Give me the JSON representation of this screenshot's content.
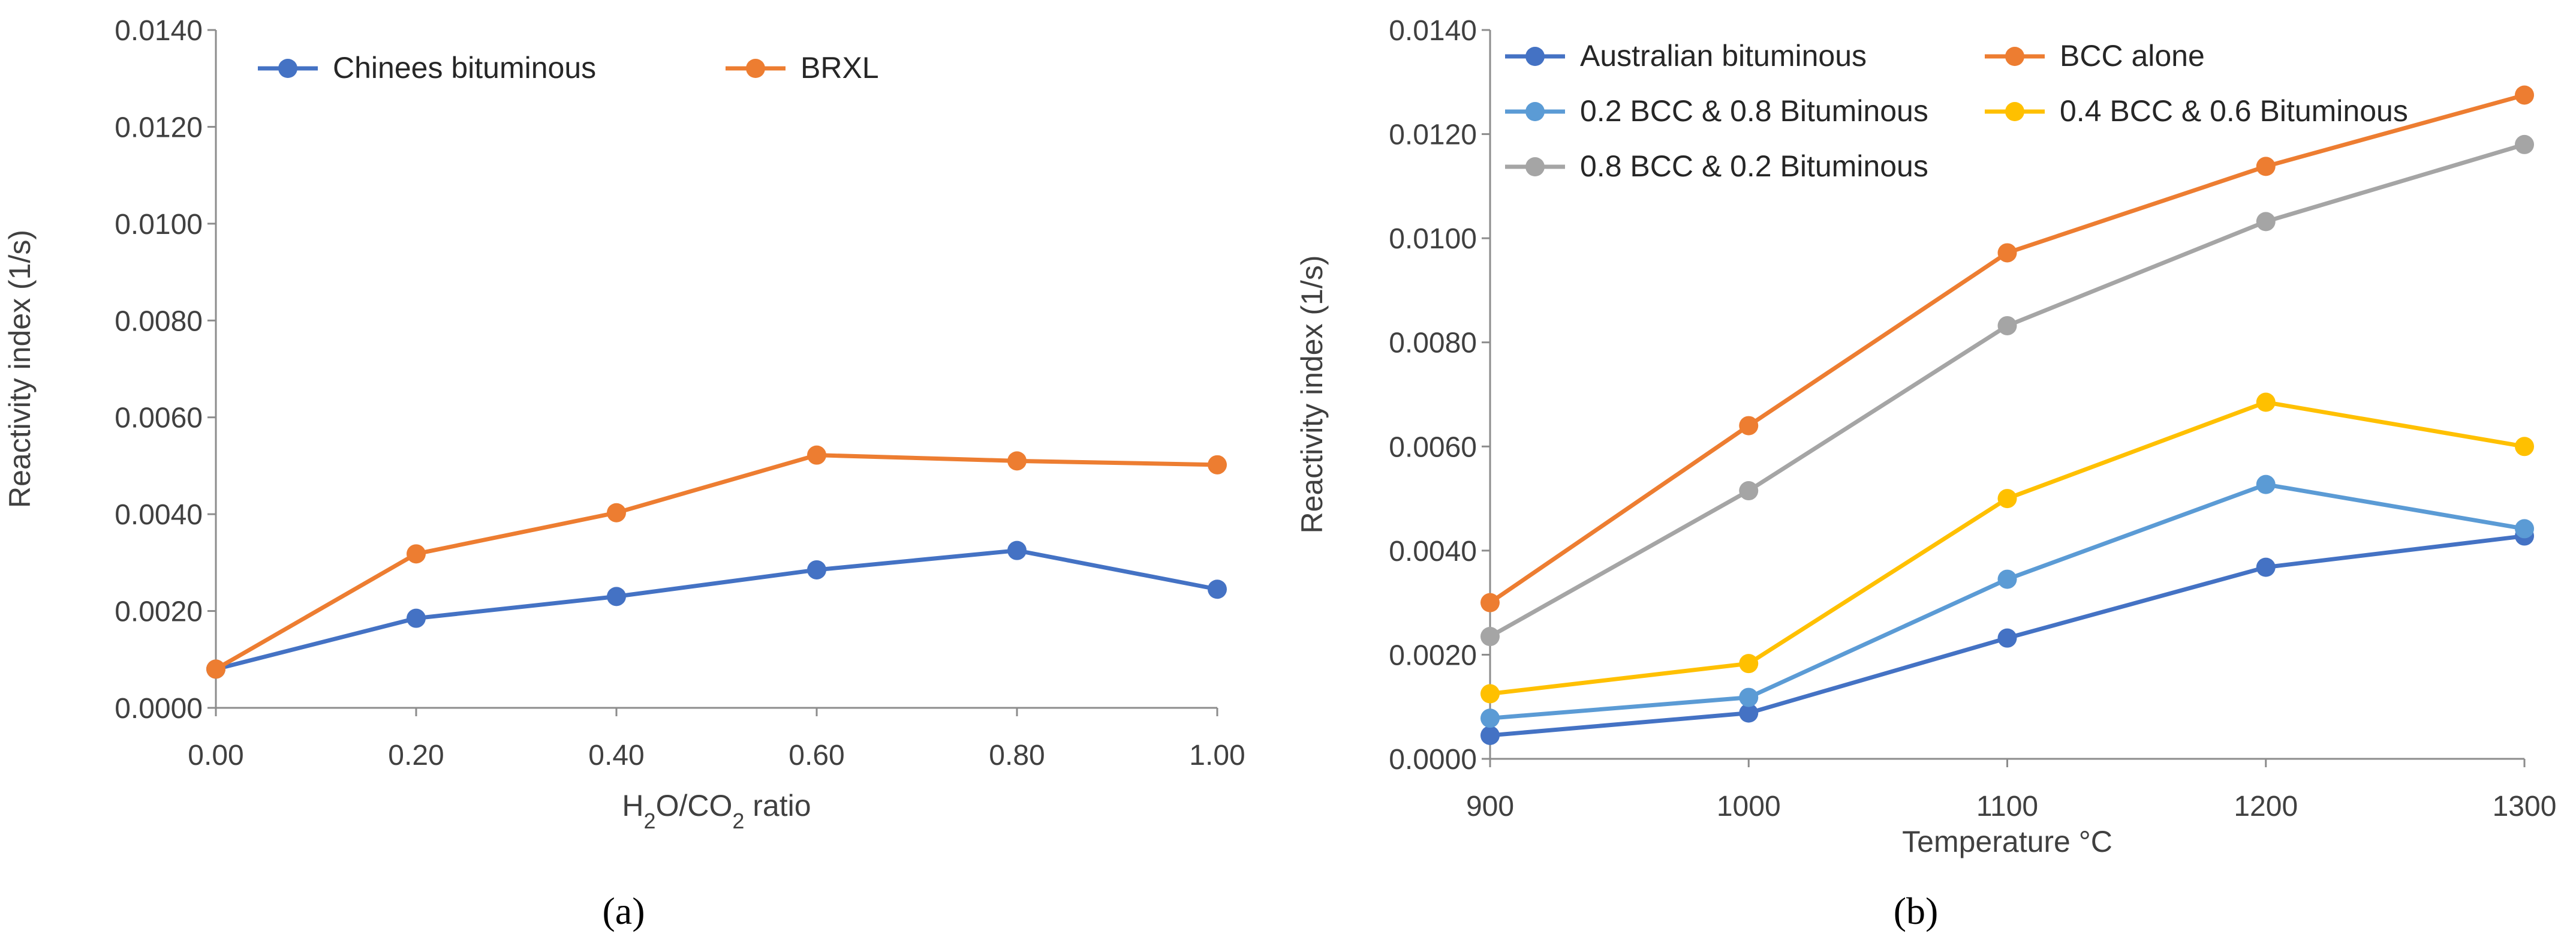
{
  "chart_data": [
    {
      "type": "line",
      "panel": "a",
      "caption": "(a)",
      "title": "",
      "xlabel": "H2O/CO2 ratio",
      "ylabel": "Reactivity index (1/s)",
      "x": [
        0.0,
        0.2,
        0.4,
        0.6,
        0.8,
        1.0
      ],
      "x_ticks": [
        "0.00",
        "0.20",
        "0.40",
        "0.60",
        "0.80",
        "1.00"
      ],
      "xlim": [
        0,
        1
      ],
      "ylim": [
        0,
        0.014
      ],
      "y_ticks": [
        "0.0000",
        "0.0020",
        "0.0040",
        "0.0060",
        "0.0080",
        "0.0100",
        "0.0120",
        "0.0140"
      ],
      "grid": false,
      "legend_position": "top-left",
      "series": [
        {
          "name": "Chinees bituminous",
          "color": "#4472C4",
          "values": [
            0.0008,
            0.00185,
            0.0023,
            0.00285,
            0.00325,
            0.00245
          ]
        },
        {
          "name": "BRXL",
          "color": "#ED7D31",
          "values": [
            0.0008,
            0.00318,
            0.00403,
            0.00522,
            0.0051,
            0.00502
          ]
        }
      ]
    },
    {
      "type": "line",
      "panel": "b",
      "caption": "(b)",
      "title": "",
      "xlabel": "Temperature °C",
      "ylabel": "Reactivity index (1/s)",
      "x": [
        900,
        1000,
        1100,
        1200,
        1300
      ],
      "x_ticks": [
        "900",
        "1000",
        "1100",
        "1200",
        "1300"
      ],
      "xlim": [
        900,
        1300
      ],
      "ylim": [
        0,
        0.014
      ],
      "y_ticks": [
        "0.0000",
        "0.0020",
        "0.0040",
        "0.0060",
        "0.0080",
        "0.0100",
        "0.0120",
        "0.0140"
      ],
      "grid": false,
      "legend_position": "top-left",
      "series": [
        {
          "name": "Australian bituminous",
          "color": "#4472C4",
          "values": [
            0.00045,
            0.00088,
            0.00232,
            0.00368,
            0.00428
          ]
        },
        {
          "name": "BCC alone",
          "color": "#ED7D31",
          "values": [
            0.003,
            0.0064,
            0.00972,
            0.01138,
            0.01275
          ]
        },
        {
          "name": "0.2 BCC & 0.8 Bituminous",
          "color": "#5B9BD5",
          "values": [
            0.00078,
            0.00118,
            0.00345,
            0.00527,
            0.00442
          ]
        },
        {
          "name": "0.4 BCC & 0.6 Bituminous",
          "color": "#FFC000",
          "values": [
            0.00125,
            0.00183,
            0.005,
            0.00685,
            0.006
          ]
        },
        {
          "name": "0.8 BCC & 0.2 Bituminous",
          "color": "#A5A5A5",
          "values": [
            0.00235,
            0.00515,
            0.00832,
            0.01032,
            0.0118
          ]
        }
      ]
    }
  ]
}
